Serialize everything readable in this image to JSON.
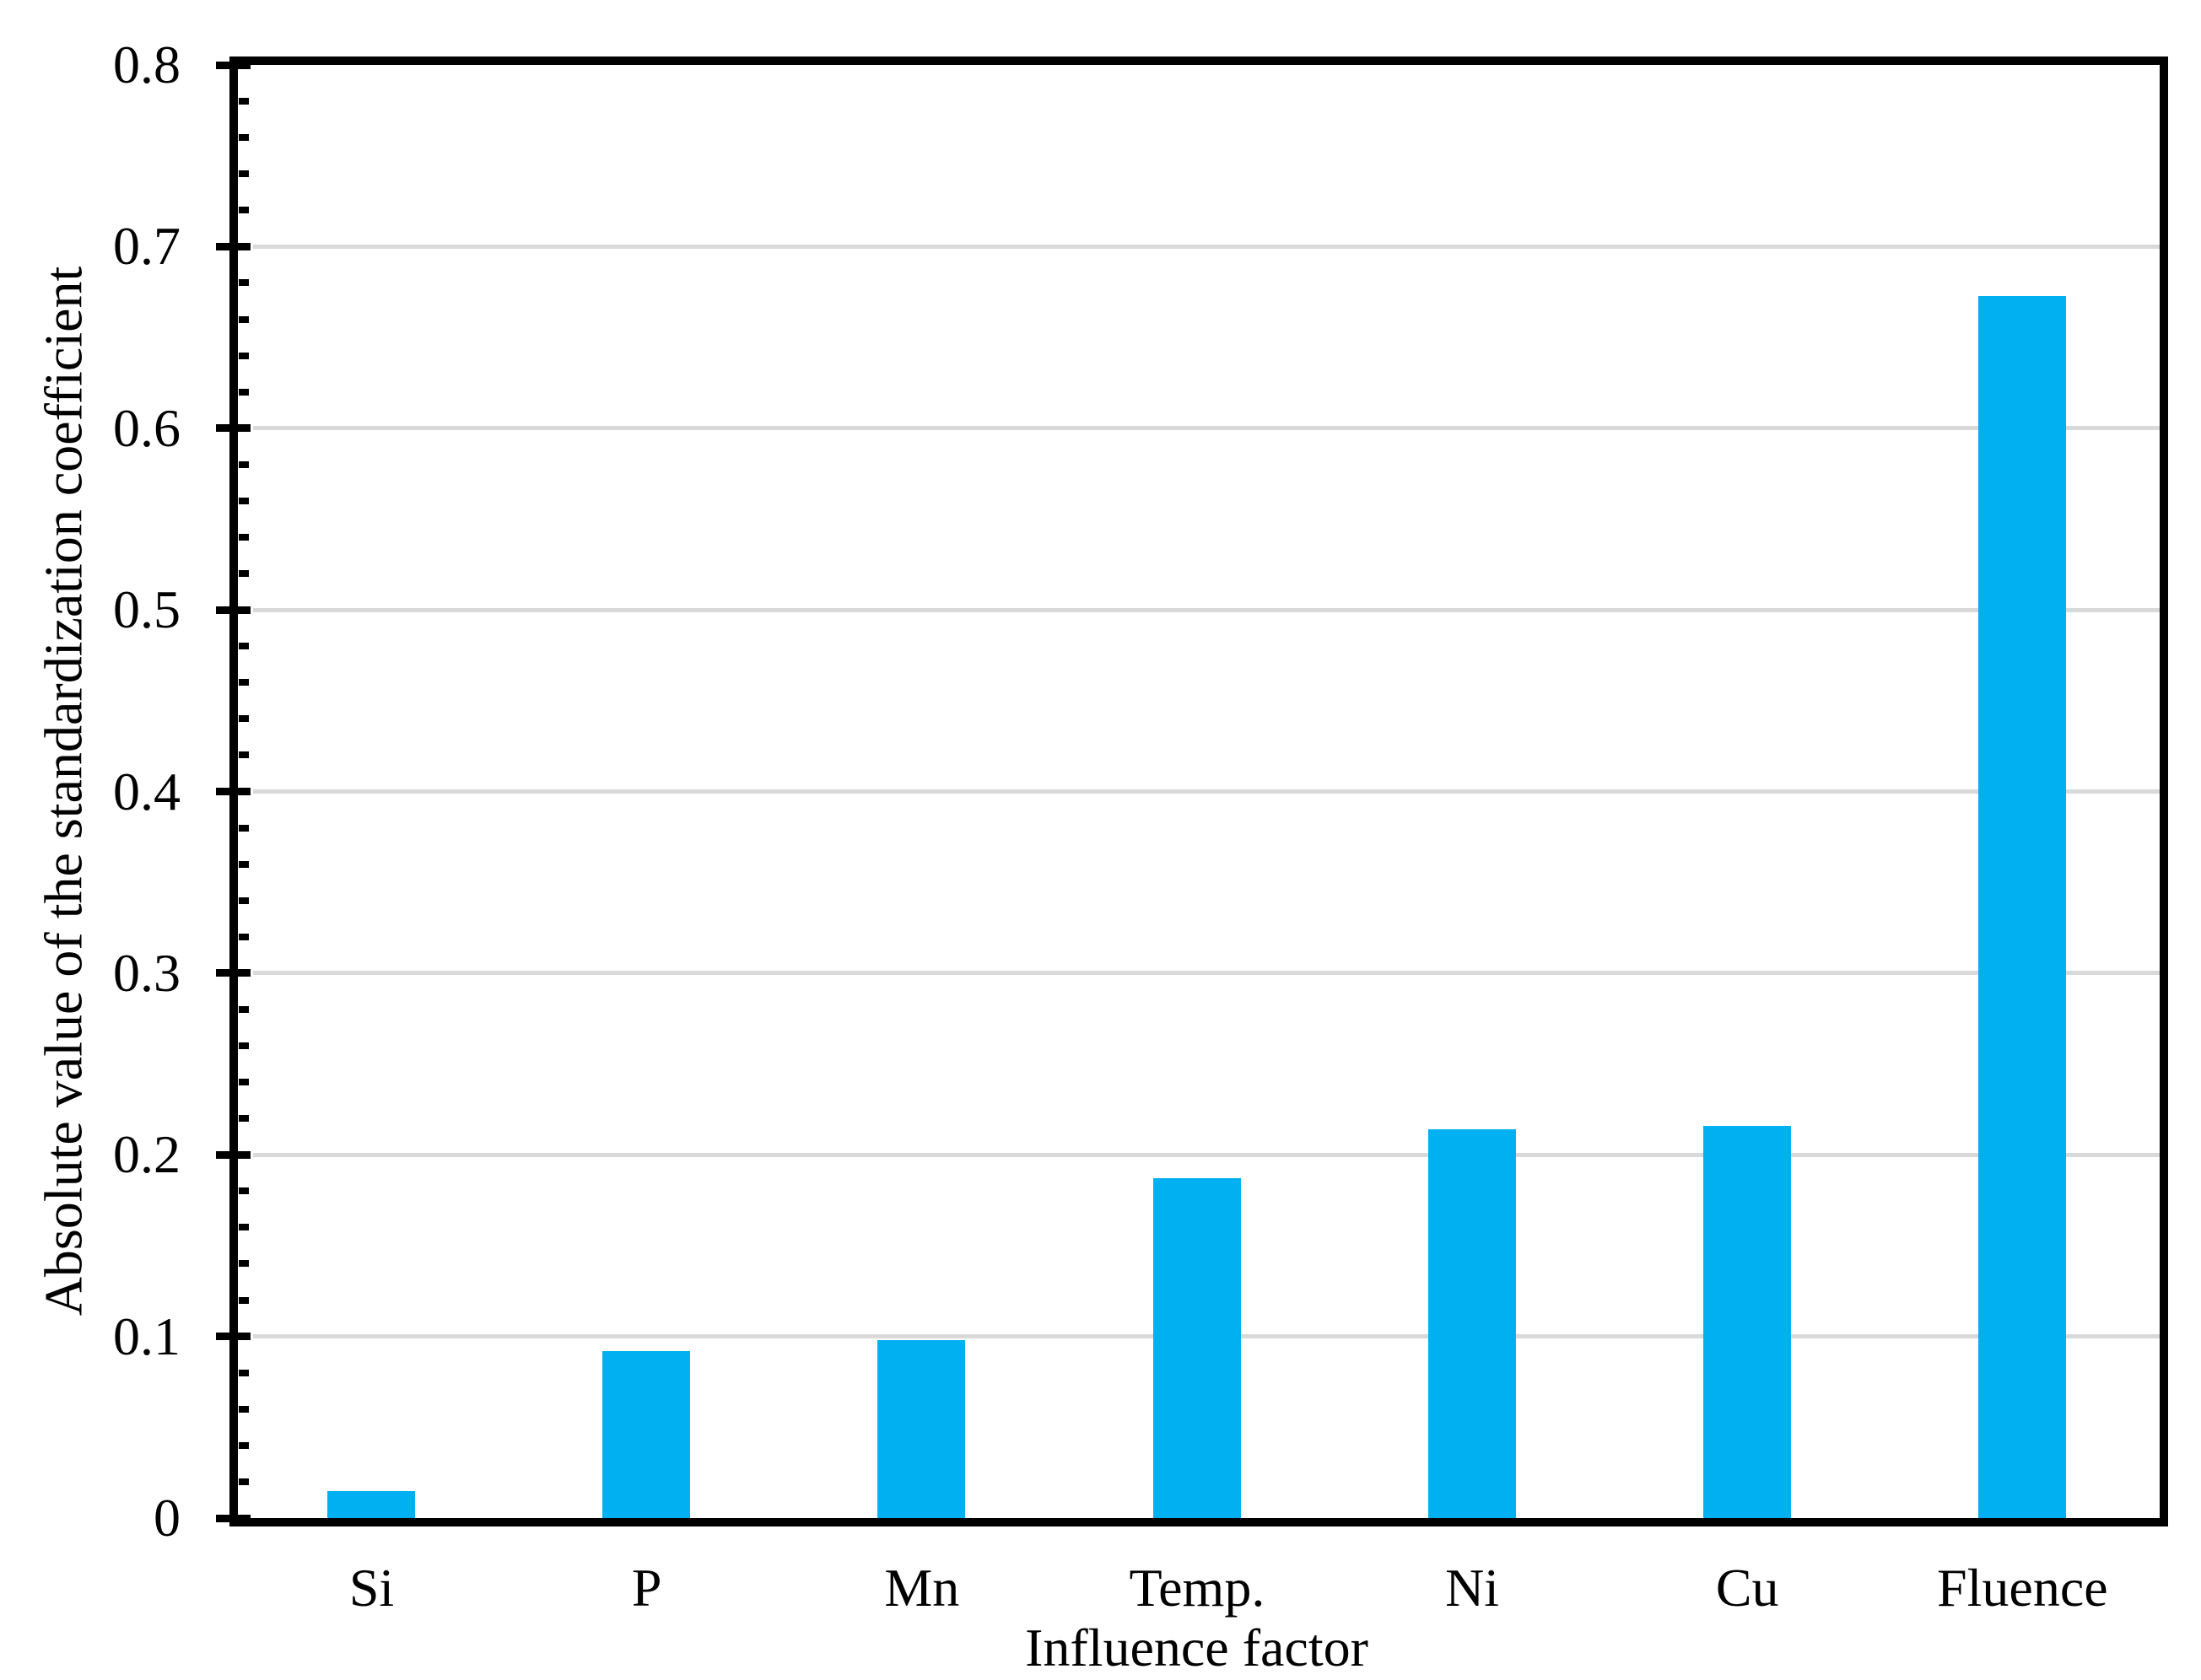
{
  "figure": {
    "background_color": "#FFFFFF"
  },
  "chart_data": {
    "type": "bar",
    "title": "",
    "xlabel": "Influence factor",
    "ylabel": "Absolute value of the standardization coefficient",
    "categories": [
      "Si",
      "P",
      "Mn",
      "Temp.",
      "Ni",
      "Cu",
      "Fluence"
    ],
    "values": [
      0.015,
      0.092,
      0.098,
      0.187,
      0.214,
      0.216,
      0.673
    ],
    "ylim": [
      0,
      0.8
    ],
    "ytick_interval": 0.1,
    "yminor_tick_interval": 0.02,
    "ytick_labels": [
      "0",
      "0.1",
      "0.2",
      "0.3",
      "0.4",
      "0.5",
      "0.6",
      "0.7",
      "0.8"
    ],
    "grid": "horizontal-major",
    "legend_position": "none",
    "bar_color": "#00B0F0",
    "gridline_color": "#D9D9D9",
    "axis_color": "#000000",
    "plot_frame": true
  }
}
